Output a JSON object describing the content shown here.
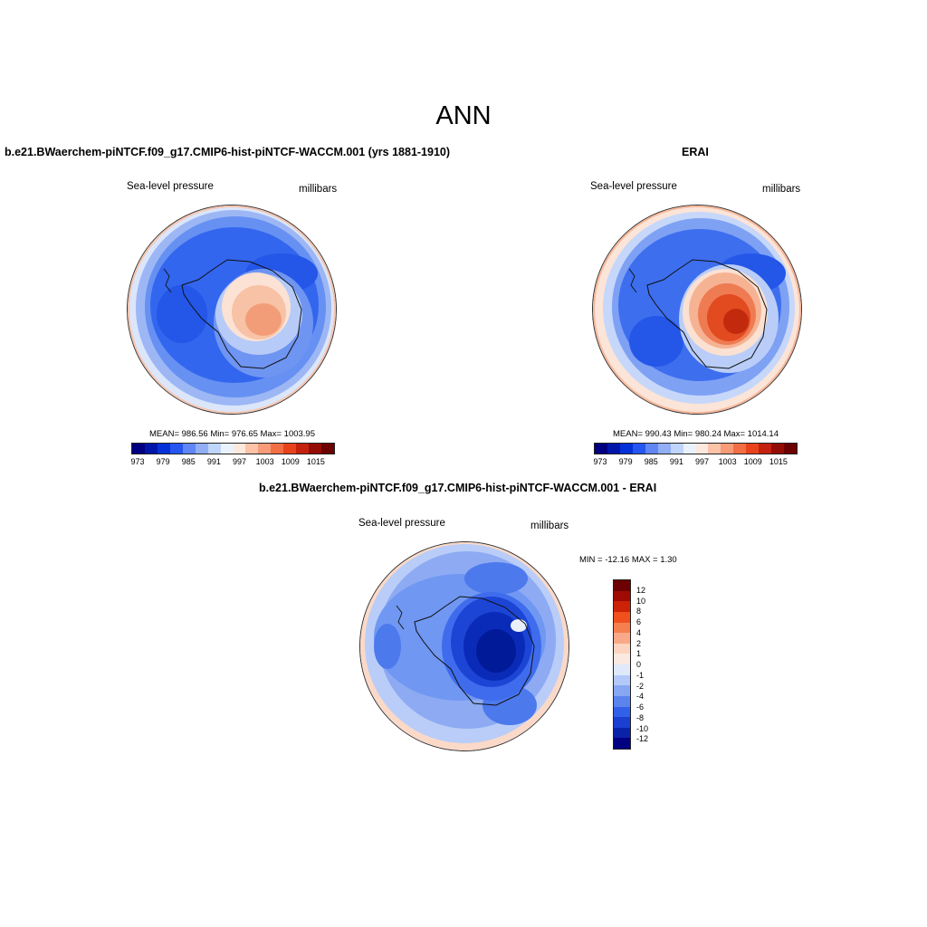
{
  "figure": {
    "title": "ANN"
  },
  "panel_model": {
    "title": "b.e21.BWaerchem-piNTCF.f09_g17.CMIP6-hist-piNTCF-WACCM.001 (yrs 1881-1910)",
    "variable": "Sea-level pressure",
    "units": "millibars",
    "stats": "MEAN= 986.56  Min= 976.65  Max= 1003.95"
  },
  "panel_obs": {
    "title": "ERAI",
    "variable": "Sea-level pressure",
    "units": "millibars",
    "stats": "MEAN= 990.43  Min= 980.24  Max= 1014.14"
  },
  "panel_diff": {
    "title": "b.e21.BWaerchem-piNTCF.f09_g17.CMIP6-hist-piNTCF-WACCM.001 - ERAI",
    "variable": "Sea-level pressure",
    "units": "millibars",
    "stats": "MIN = -12.16 MAX =   1.30"
  },
  "colorbar_main": {
    "colors": [
      "#000080",
      "#0016a8",
      "#0532d8",
      "#2656f0",
      "#5f86f4",
      "#91aef6",
      "#c0d5fa",
      "#eaf2fd",
      "#fde8de",
      "#fbc3a8",
      "#f79b78",
      "#f26e45",
      "#e8431b",
      "#c4220e",
      "#940d05",
      "#6d0000"
    ],
    "tick_labels": [
      "973",
      "979",
      "985",
      "991",
      "997",
      "1003",
      "1009",
      "1015"
    ]
  },
  "colorbar_diff": {
    "colors": [
      "#6d0000",
      "#9f0b02",
      "#cc2307",
      "#f0501e",
      "#f67f4f",
      "#f9a987",
      "#fdd4c0",
      "#f9e9e1",
      "#dfe9fb",
      "#b3c9f7",
      "#87a7f3",
      "#5b84ee",
      "#3360e9",
      "#1b3fd0",
      "#0a22a8",
      "#000080"
    ],
    "tick_labels": [
      "12",
      "10",
      "8",
      "6",
      "4",
      "2",
      "1",
      "0",
      "-1",
      "-2",
      "-4",
      "-6",
      "-8",
      "-10",
      "-12"
    ]
  }
}
